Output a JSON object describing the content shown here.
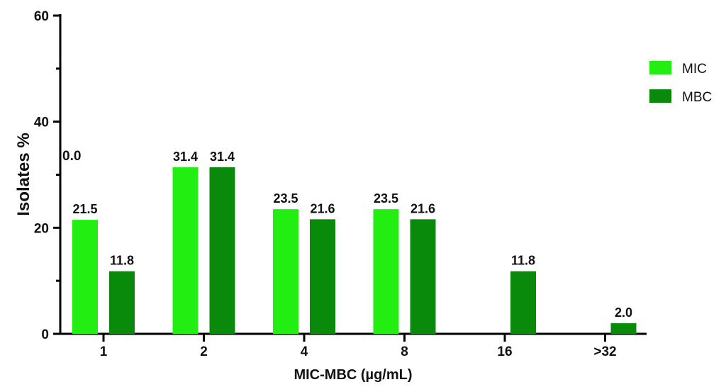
{
  "chart_data": {
    "type": "bar",
    "title": "",
    "xlabel": "MIC-MBC (µg/mL)",
    "ylabel": "Isolates %",
    "ylim": [
      0,
      60
    ],
    "yticks": [
      0,
      20,
      40,
      60
    ],
    "categories": [
      "1",
      "2",
      "4",
      "8",
      "16",
      ">32"
    ],
    "series": [
      {
        "name": "MIC",
        "color": "#22ee11",
        "values": [
          21.5,
          31.4,
          23.5,
          23.5,
          0,
          0
        ]
      },
      {
        "name": "MBC",
        "color": "#0a8a0a",
        "values": [
          11.8,
          31.4,
          21.6,
          21.6,
          11.8,
          2.0
        ]
      }
    ],
    "data_labels": [
      [
        "21.5",
        "31.4",
        "23.5",
        "23.5",
        "",
        ""
      ],
      [
        "11.8",
        "31.4",
        "21.6",
        "21.6",
        "11.8",
        "2.0"
      ]
    ],
    "stray_label": "0.0",
    "legend_position": "top-right",
    "grid": false
  }
}
